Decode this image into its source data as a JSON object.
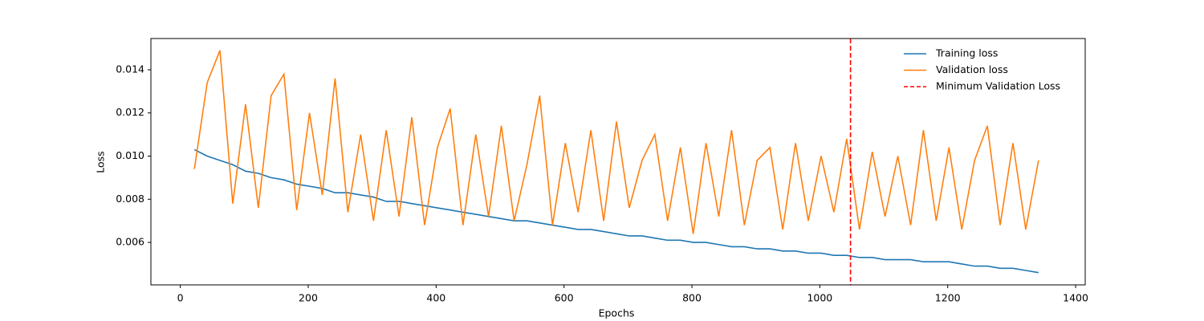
{
  "chart_data": {
    "type": "line",
    "xlabel": "Epochs",
    "ylabel": "Loss",
    "x": [
      22,
      42,
      62,
      82,
      102,
      122,
      142,
      162,
      182,
      202,
      222,
      242,
      262,
      282,
      302,
      322,
      342,
      362,
      382,
      402,
      422,
      442,
      462,
      482,
      502,
      522,
      542,
      562,
      582,
      602,
      622,
      642,
      662,
      682,
      702,
      722,
      742,
      762,
      782,
      802,
      822,
      842,
      862,
      882,
      902,
      922,
      942,
      962,
      982,
      1002,
      1022,
      1042,
      1062,
      1082,
      1102,
      1122,
      1142,
      1162,
      1182,
      1202,
      1222,
      1242,
      1262,
      1282,
      1302,
      1322,
      1342
    ],
    "series": [
      {
        "name": "Training loss",
        "color": "#1f77b4",
        "values": [
          0.0103,
          0.01,
          0.0098,
          0.0096,
          0.0093,
          0.0092,
          0.009,
          0.0089,
          0.0087,
          0.0086,
          0.0085,
          0.0083,
          0.0083,
          0.0082,
          0.0081,
          0.0079,
          0.0079,
          0.0078,
          0.0077,
          0.0076,
          0.0075,
          0.0074,
          0.0073,
          0.0072,
          0.0071,
          0.007,
          0.007,
          0.0069,
          0.0068,
          0.0067,
          0.0066,
          0.0066,
          0.0065,
          0.0064,
          0.0063,
          0.0063,
          0.0062,
          0.0061,
          0.0061,
          0.006,
          0.006,
          0.0059,
          0.0058,
          0.0058,
          0.0057,
          0.0057,
          0.0056,
          0.0056,
          0.0055,
          0.0055,
          0.0054,
          0.0054,
          0.0053,
          0.0053,
          0.0052,
          0.0052,
          0.0052,
          0.0051,
          0.0051,
          0.0051,
          0.005,
          0.0049,
          0.0049,
          0.0048,
          0.0048,
          0.0047,
          0.0046
        ]
      },
      {
        "name": "Validation loss",
        "color": "#ff7f0e",
        "values": [
          0.0094,
          0.0134,
          0.0149,
          0.0078,
          0.0124,
          0.0076,
          0.0128,
          0.0138,
          0.0075,
          0.012,
          0.0082,
          0.0136,
          0.0074,
          0.011,
          0.007,
          0.0112,
          0.0072,
          0.0118,
          0.0068,
          0.0104,
          0.0122,
          0.0068,
          0.011,
          0.0072,
          0.0114,
          0.007,
          0.0096,
          0.0128,
          0.0068,
          0.0106,
          0.0074,
          0.0112,
          0.007,
          0.0116,
          0.0076,
          0.0098,
          0.011,
          0.007,
          0.0104,
          0.0064,
          0.0106,
          0.0072,
          0.0112,
          0.0068,
          0.0098,
          0.0104,
          0.0066,
          0.0106,
          0.007,
          0.01,
          0.0074,
          0.0108,
          0.0066,
          0.0102,
          0.0072,
          0.01,
          0.0068,
          0.0112,
          0.007,
          0.0104,
          0.0066,
          0.0098,
          0.0114,
          0.0068,
          0.0106,
          0.0066,
          0.0098
        ]
      }
    ],
    "reference_line": {
      "name": "Minimum Validation Loss",
      "color": "#ff0000",
      "x": 1048
    },
    "xlim": [
      -46,
      1415
    ],
    "xticks": [
      0,
      200,
      400,
      600,
      800,
      1000,
      1200,
      1400
    ],
    "ylim": [
      0.00403,
      0.01545
    ],
    "yticks": [
      0.006,
      0.008,
      {
        "value": 0.01,
        "label": "0.010"
      },
      0.012,
      0.014
    ],
    "grid": false,
    "legend": "upper right"
  }
}
